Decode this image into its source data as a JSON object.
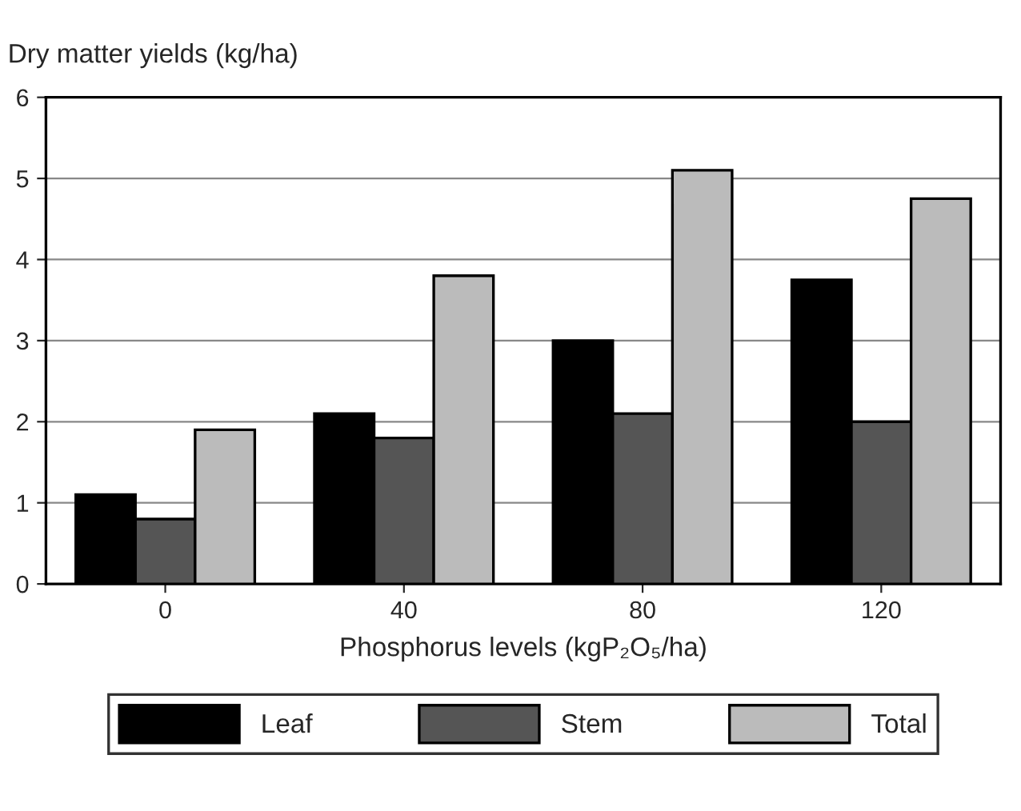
{
  "chart_data": {
    "type": "bar",
    "ylabel": "Dry matter yields (kg/ha)",
    "xlabel": "Phosphorus levels (kgP₂O₅/ha)",
    "categories": [
      "0",
      "40",
      "80",
      "120"
    ],
    "series": [
      {
        "name": "Leaf",
        "color": "#000000",
        "values": [
          1.1,
          2.1,
          3.0,
          3.75
        ]
      },
      {
        "name": "Stem",
        "color": "#555555",
        "values": [
          0.8,
          1.8,
          2.1,
          2.0
        ]
      },
      {
        "name": "Total",
        "color": "#bbbbbb",
        "values": [
          1.9,
          3.8,
          5.1,
          4.75
        ]
      }
    ],
    "ylim": [
      0,
      6
    ],
    "yticks": [
      0,
      1,
      2,
      3,
      4,
      5,
      6
    ],
    "grid": "y",
    "legend": "bottom"
  }
}
